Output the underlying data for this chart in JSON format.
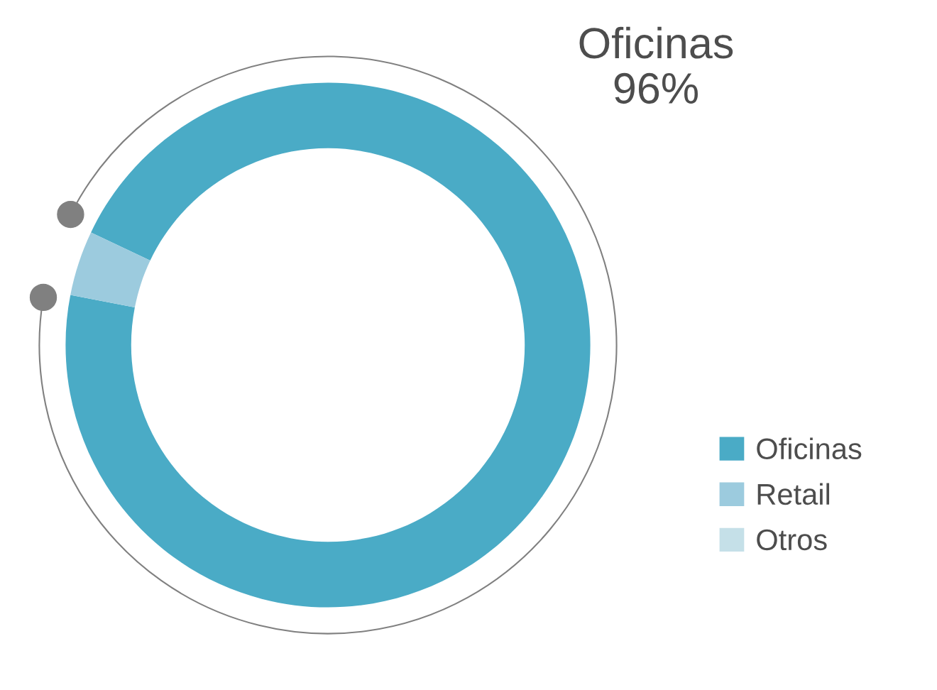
{
  "chart_data": {
    "type": "donut",
    "categories": [
      "Oficinas",
      "Retail",
      "Otros"
    ],
    "values": [
      96,
      4,
      0
    ],
    "colors": [
      "#4aabc6",
      "#9ccbde",
      "#c5e0e8"
    ],
    "annotations": [
      "Oficinas\n96%"
    ],
    "legend": "right"
  }
}
